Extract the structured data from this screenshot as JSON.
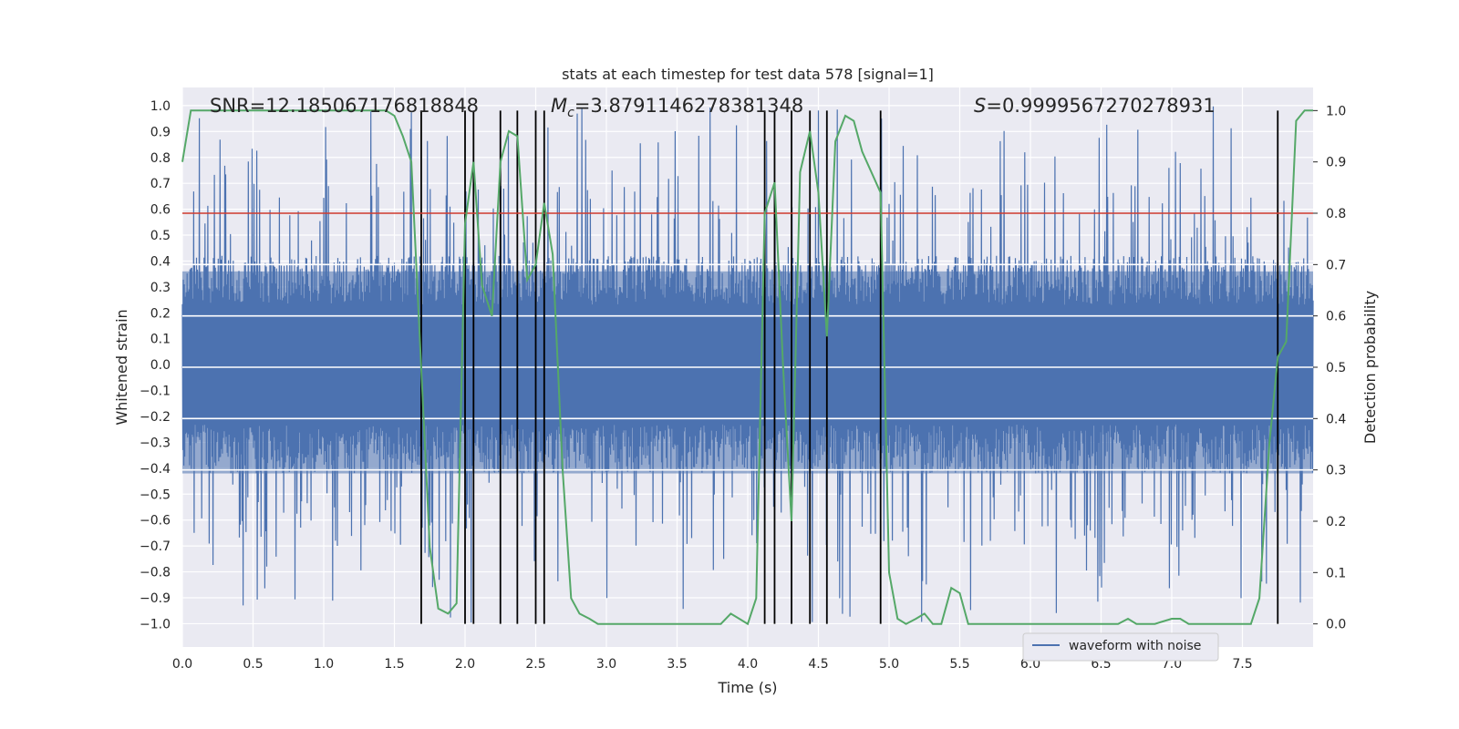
{
  "chart_data": {
    "type": "line",
    "title": "stats at each timestep for test data 578 [signal=1]",
    "xlabel": "Time (s)",
    "ylabel": "Whitened strain",
    "ylabel_right": "Detection probability",
    "xlim": [
      0.0,
      8.0
    ],
    "ylim": [
      -1.09,
      1.07
    ],
    "ylim_right": [
      -0.045,
      1.045
    ],
    "xticks": [
      "0.0",
      "0.5",
      "1.0",
      "1.5",
      "2.0",
      "2.5",
      "3.0",
      "3.5",
      "4.0",
      "4.5",
      "5.0",
      "5.5",
      "6.0",
      "6.5",
      "7.0",
      "7.5"
    ],
    "yticks": [
      "1.0",
      "0.9",
      "0.8",
      "0.7",
      "0.6",
      "0.5",
      "0.4",
      "0.3",
      "0.2",
      "0.1",
      "0.0",
      "-0.1",
      "-0.2",
      "-0.3",
      "-0.4",
      "-0.5",
      "-0.6",
      "-0.7",
      "-0.8",
      "-0.9",
      "-1.0"
    ],
    "yticks_right": [
      "1.0",
      "0.9",
      "0.8",
      "0.7",
      "0.6",
      "0.5",
      "0.4",
      "0.3",
      "0.2",
      "0.1",
      "0.0"
    ],
    "annotations": {
      "snr": "SNR=12.185067176818848",
      "mc_symbol": "M",
      "mc_subscript": "c",
      "mc_value": "=3.8791146278381348",
      "s_symbol": "S",
      "s_value": "=0.9999567270278931"
    },
    "legend": {
      "label": "waveform with noise",
      "placement": "lower-right"
    },
    "threshold": {
      "axis": "right",
      "value": 0.8,
      "color": "#d03a2e"
    },
    "white_hlines_right": [
      0.3,
      0.4,
      0.5,
      0.6,
      0.7
    ],
    "event_times": [
      1.69,
      2.0,
      2.06,
      2.25,
      2.37,
      2.5,
      2.56,
      4.12,
      4.19,
      4.31,
      4.44,
      4.56,
      4.94,
      7.75
    ],
    "waveform": {
      "name": "waveform with noise",
      "color": "#4c72b0",
      "duration": 8.0,
      "typical_amplitude": 0.42,
      "peak_amplitude": 1.0
    },
    "detection_probability": {
      "color": "#55a868",
      "x": [
        0.0,
        0.06,
        0.12,
        0.25,
        0.5,
        0.75,
        1.0,
        1.25,
        1.44,
        1.5,
        1.56,
        1.62,
        1.69,
        1.75,
        1.81,
        1.88,
        1.94,
        2.0,
        2.06,
        2.12,
        2.19,
        2.25,
        2.31,
        2.37,
        2.44,
        2.5,
        2.56,
        2.62,
        2.69,
        2.75,
        2.81,
        2.88,
        2.94,
        3.0,
        3.1,
        3.25,
        3.5,
        3.75,
        3.81,
        3.88,
        3.94,
        4.0,
        4.06,
        4.12,
        4.19,
        4.25,
        4.31,
        4.37,
        4.44,
        4.5,
        4.56,
        4.62,
        4.69,
        4.75,
        4.81,
        4.94,
        5.0,
        5.06,
        5.12,
        5.19,
        5.25,
        5.31,
        5.37,
        5.44,
        5.5,
        5.56,
        5.62,
        5.75,
        6.0,
        6.25,
        6.5,
        6.62,
        6.69,
        6.75,
        6.88,
        7.0,
        7.06,
        7.12,
        7.25,
        7.5,
        7.56,
        7.62,
        7.69,
        7.75,
        7.81,
        7.88,
        7.94,
        8.0
      ],
      "y": [
        0.9,
        1.0,
        1.0,
        1.0,
        1.0,
        1.0,
        1.0,
        1.0,
        1.0,
        0.99,
        0.95,
        0.9,
        0.5,
        0.15,
        0.03,
        0.02,
        0.04,
        0.78,
        0.9,
        0.66,
        0.6,
        0.9,
        0.96,
        0.95,
        0.67,
        0.7,
        0.82,
        0.72,
        0.3,
        0.05,
        0.02,
        0.01,
        0.0,
        0.0,
        0.0,
        0.0,
        0.0,
        0.0,
        0.0,
        0.02,
        0.01,
        0.0,
        0.05,
        0.8,
        0.86,
        0.5,
        0.2,
        0.88,
        0.96,
        0.84,
        0.56,
        0.94,
        0.99,
        0.98,
        0.92,
        0.84,
        0.1,
        0.01,
        0.0,
        0.01,
        0.02,
        0.0,
        0.0,
        0.07,
        0.06,
        0.0,
        0.0,
        0.0,
        0.0,
        0.0,
        0.0,
        0.0,
        0.01,
        0.0,
        0.0,
        0.01,
        0.01,
        0.0,
        0.0,
        0.0,
        0.0,
        0.05,
        0.35,
        0.52,
        0.55,
        0.98,
        1.0,
        1.0
      ]
    }
  }
}
